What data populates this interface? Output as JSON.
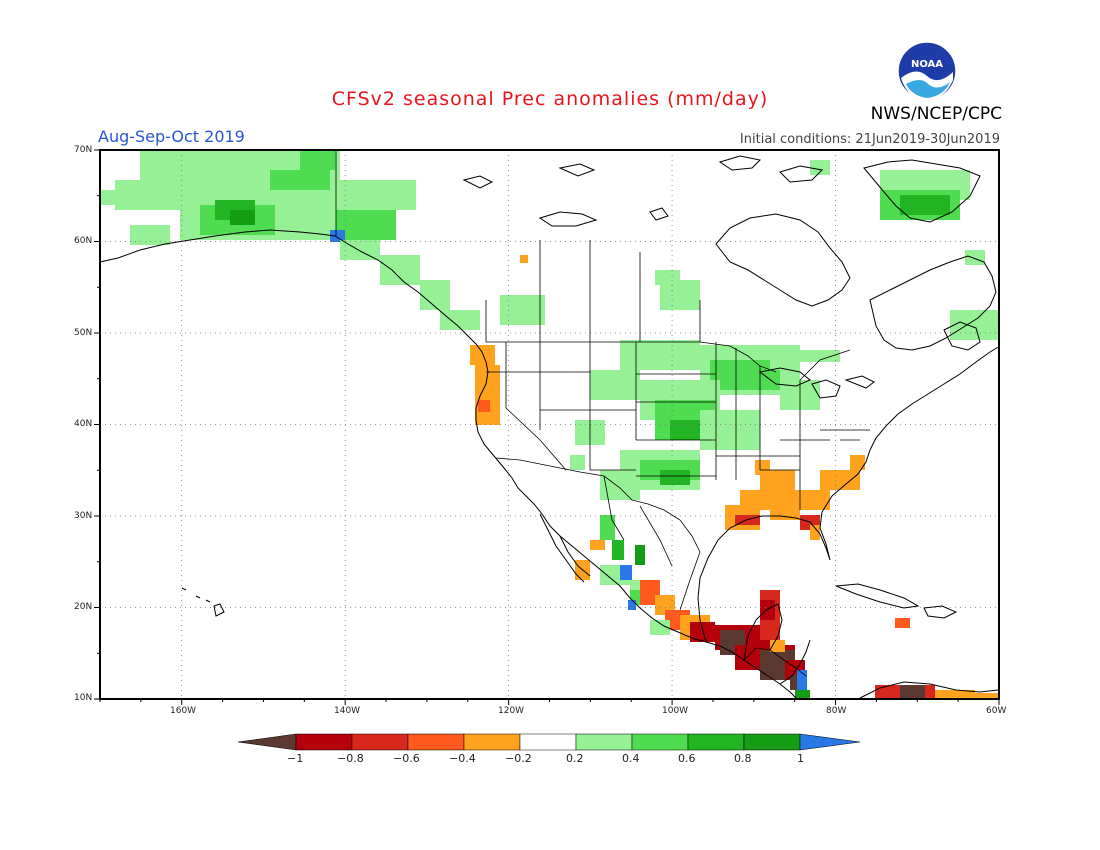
{
  "title": "CFSv2 seasonal Prec anomalies (mm/day)",
  "period": "Aug-Sep-Oct 2019",
  "initial_conditions": "Initial conditions: 21Jun2019-30Jun2019",
  "org": "NWS/NCEP/CPC",
  "logo_text": "NOAA",
  "map": {
    "lat_labels": [
      "70N",
      "60N",
      "50N",
      "40N",
      "30N",
      "20N",
      "10N"
    ],
    "lon_labels": [
      "160W",
      "140W",
      "120W",
      "100W",
      "80W",
      "60W"
    ]
  },
  "colorbar": {
    "labels": [
      "−1",
      "−0.8",
      "−0.6",
      "−0.4",
      "−0.2",
      "0.2",
      "0.4",
      "0.6",
      "0.8",
      "1"
    ],
    "colors": {
      "below_minus1": "#5a3a30",
      "m1_m08": "#b4000a",
      "m08_m06": "#d8281e",
      "m06_m04": "#ff5a1e",
      "m04_m02": "#ffa31e",
      "m02_02": "#ffffff",
      "p02_p04": "#96f096",
      "p04_p06": "#50dc50",
      "p06_p08": "#23b423",
      "p08_p1": "#159c15",
      "above_1": "#2878e6"
    }
  }
}
